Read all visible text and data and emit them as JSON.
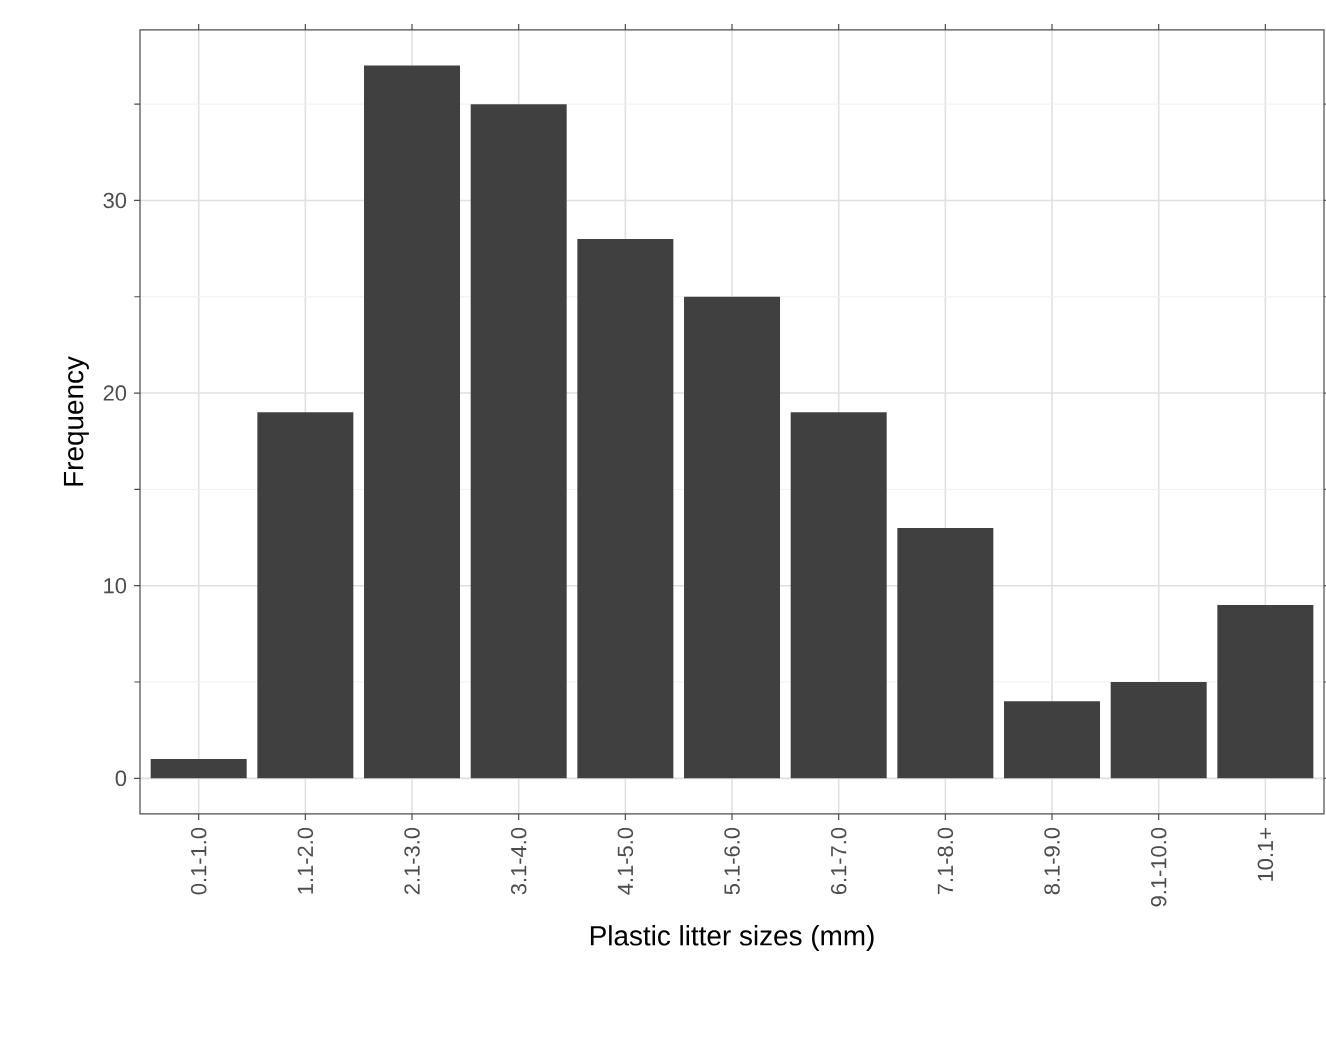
{
  "chart_data": {
    "type": "bar",
    "xlabel": "Plastic litter sizes (mm)",
    "ylabel": "Frequency",
    "categories": [
      "0.1-1.0",
      "1.1-2.0",
      "2.1-3.0",
      "3.1-4.0",
      "4.1-5.0",
      "5.1-6.0",
      "6.1-7.0",
      "7.1-8.0",
      "8.1-9.0",
      "9.1-10.0",
      "10.1+"
    ],
    "values": [
      1,
      19,
      37,
      35,
      28,
      25,
      19,
      13,
      4,
      5,
      9
    ],
    "color": "#404040",
    "ylim": [
      -1.85,
      38.85
    ],
    "yticks": [
      0,
      10,
      20,
      30
    ],
    "grid": true
  }
}
